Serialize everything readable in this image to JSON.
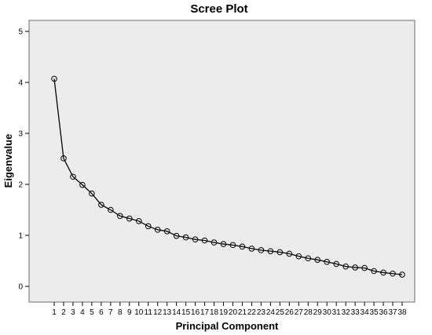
{
  "chart_data": {
    "type": "line",
    "title": "Scree Plot",
    "xlabel": "Principal Component",
    "ylabel": "Eigenvalue",
    "ylim": [
      0,
      5
    ],
    "yticks": [
      0,
      1,
      2,
      3,
      4,
      5
    ],
    "grid": false,
    "legend": "none",
    "x": [
      1,
      2,
      3,
      4,
      5,
      6,
      7,
      8,
      9,
      10,
      11,
      12,
      13,
      14,
      15,
      16,
      17,
      18,
      19,
      20,
      21,
      22,
      23,
      24,
      25,
      26,
      27,
      28,
      29,
      30,
      31,
      32,
      33,
      34,
      35,
      36,
      37,
      38
    ],
    "series": [
      {
        "values": [
          4.07,
          2.51,
          2.15,
          1.99,
          1.82,
          1.6,
          1.5,
          1.38,
          1.33,
          1.28,
          1.18,
          1.11,
          1.08,
          0.99,
          0.96,
          0.92,
          0.9,
          0.86,
          0.83,
          0.81,
          0.78,
          0.74,
          0.71,
          0.69,
          0.67,
          0.64,
          0.59,
          0.55,
          0.52,
          0.48,
          0.44,
          0.39,
          0.37,
          0.36,
          0.3,
          0.27,
          0.25,
          0.23
        ],
        "color": "#000000",
        "marker": "circle"
      }
    ],
    "colors": {
      "plot_background": "#ececec",
      "line": "#000000"
    }
  }
}
